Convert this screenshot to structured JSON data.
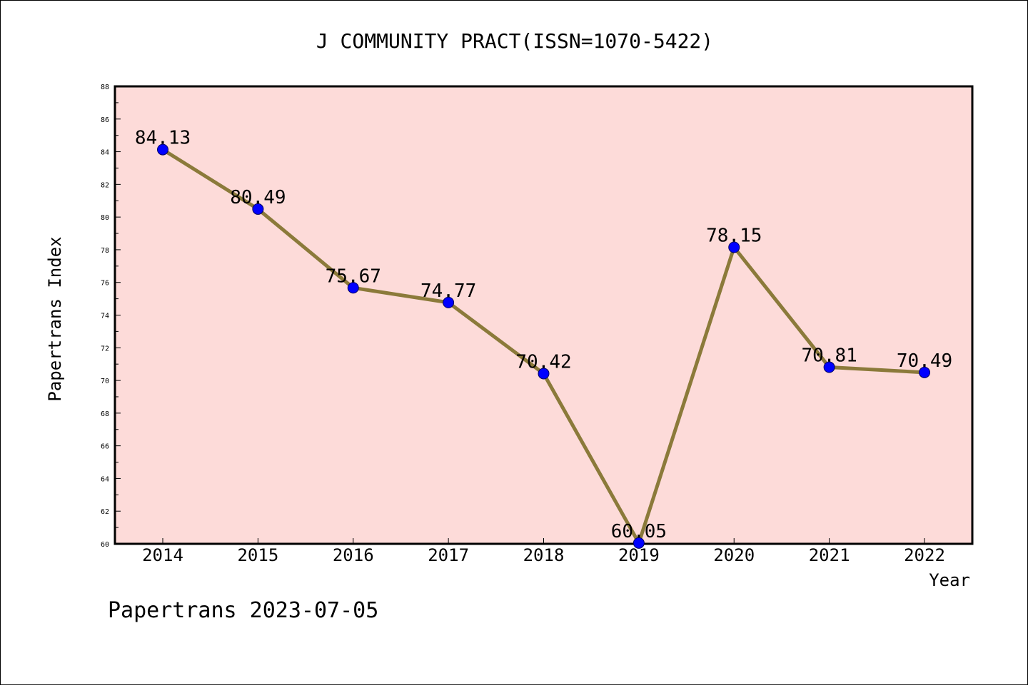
{
  "chart_data": {
    "type": "line",
    "title": "J COMMUNITY PRACT(ISSN=1070-5422)",
    "xlabel": "Year",
    "ylabel": "Papertrans Index",
    "categories": [
      "2014",
      "2015",
      "2016",
      "2017",
      "2018",
      "2019",
      "2020",
      "2021",
      "2022"
    ],
    "series": [
      {
        "values": [
          84.13,
          80.49,
          75.67,
          74.77,
          70.42,
          60.05,
          78.15,
          70.81,
          70.49
        ],
        "labels": [
          "84.13",
          "80.49",
          "75.67",
          "74.77",
          "70.42",
          "60.05",
          "78.15",
          "70.81",
          "70.49"
        ]
      }
    ],
    "ylim": [
      60,
      88
    ],
    "yticks": [
      "60",
      "62",
      "64",
      "66",
      "68",
      "70",
      "72",
      "74",
      "76",
      "78",
      "80",
      "82",
      "84",
      "86",
      "88"
    ],
    "colors": {
      "plot_background": "#fddbd9",
      "line": "#8b7a3a",
      "marker": "#0000ff"
    },
    "grid": false,
    "legend": "none"
  },
  "footer": "Papertrans 2023-07-05"
}
